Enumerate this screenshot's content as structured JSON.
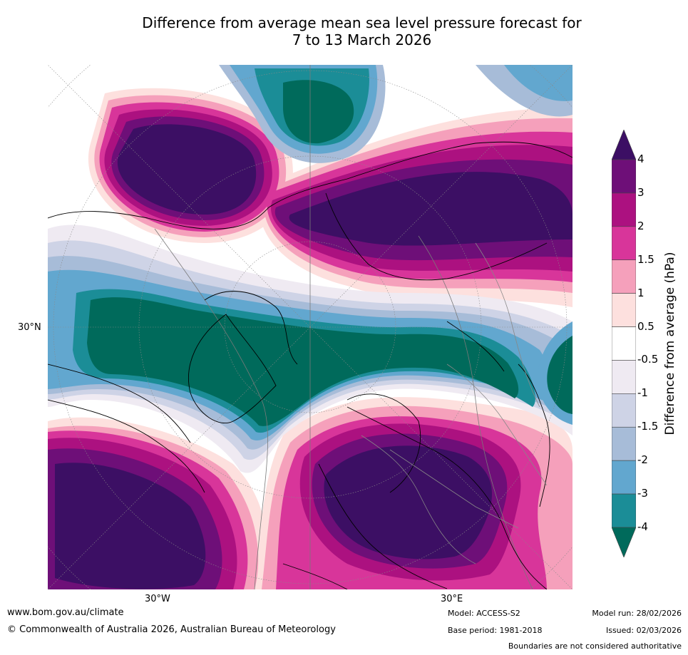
{
  "title_line1": "Difference from average mean sea level pressure forecast for",
  "title_line2": "7 to 13 March 2026",
  "axis_labels": {
    "lat_30n": "30°N",
    "lon_30w": "30°W",
    "lon_30e": "30°E"
  },
  "colorbar": {
    "title": "Difference from average (hPa)",
    "ticks": [
      "4",
      "3",
      "2",
      "1.5",
      "1",
      "0.5",
      "-0.5",
      "-1",
      "-1.5",
      "-2",
      "-3",
      "-4"
    ],
    "colors": [
      "#3c0f64",
      "#6e0f78",
      "#ac1180",
      "#d8359a",
      "#f5a0bb",
      "#fde0de",
      "#ffffff",
      "#efeaf2",
      "#ced3e6",
      "#a7bcd8",
      "#62a7cf",
      "#1b8d97",
      "#006a5b"
    ]
  },
  "footer": {
    "url": "www.bom.gov.au/climate",
    "copyright": "© Commonwealth of Australia 2026, Australian Bureau of Meteorology",
    "model": "Model: ACCESS-S2",
    "base_period": "Base period: 1981-2018",
    "model_run": "Model run: 28/02/2026",
    "issued": "Issued: 02/03/2026",
    "boundaries": "Boundaries are not considered authoritative"
  }
}
